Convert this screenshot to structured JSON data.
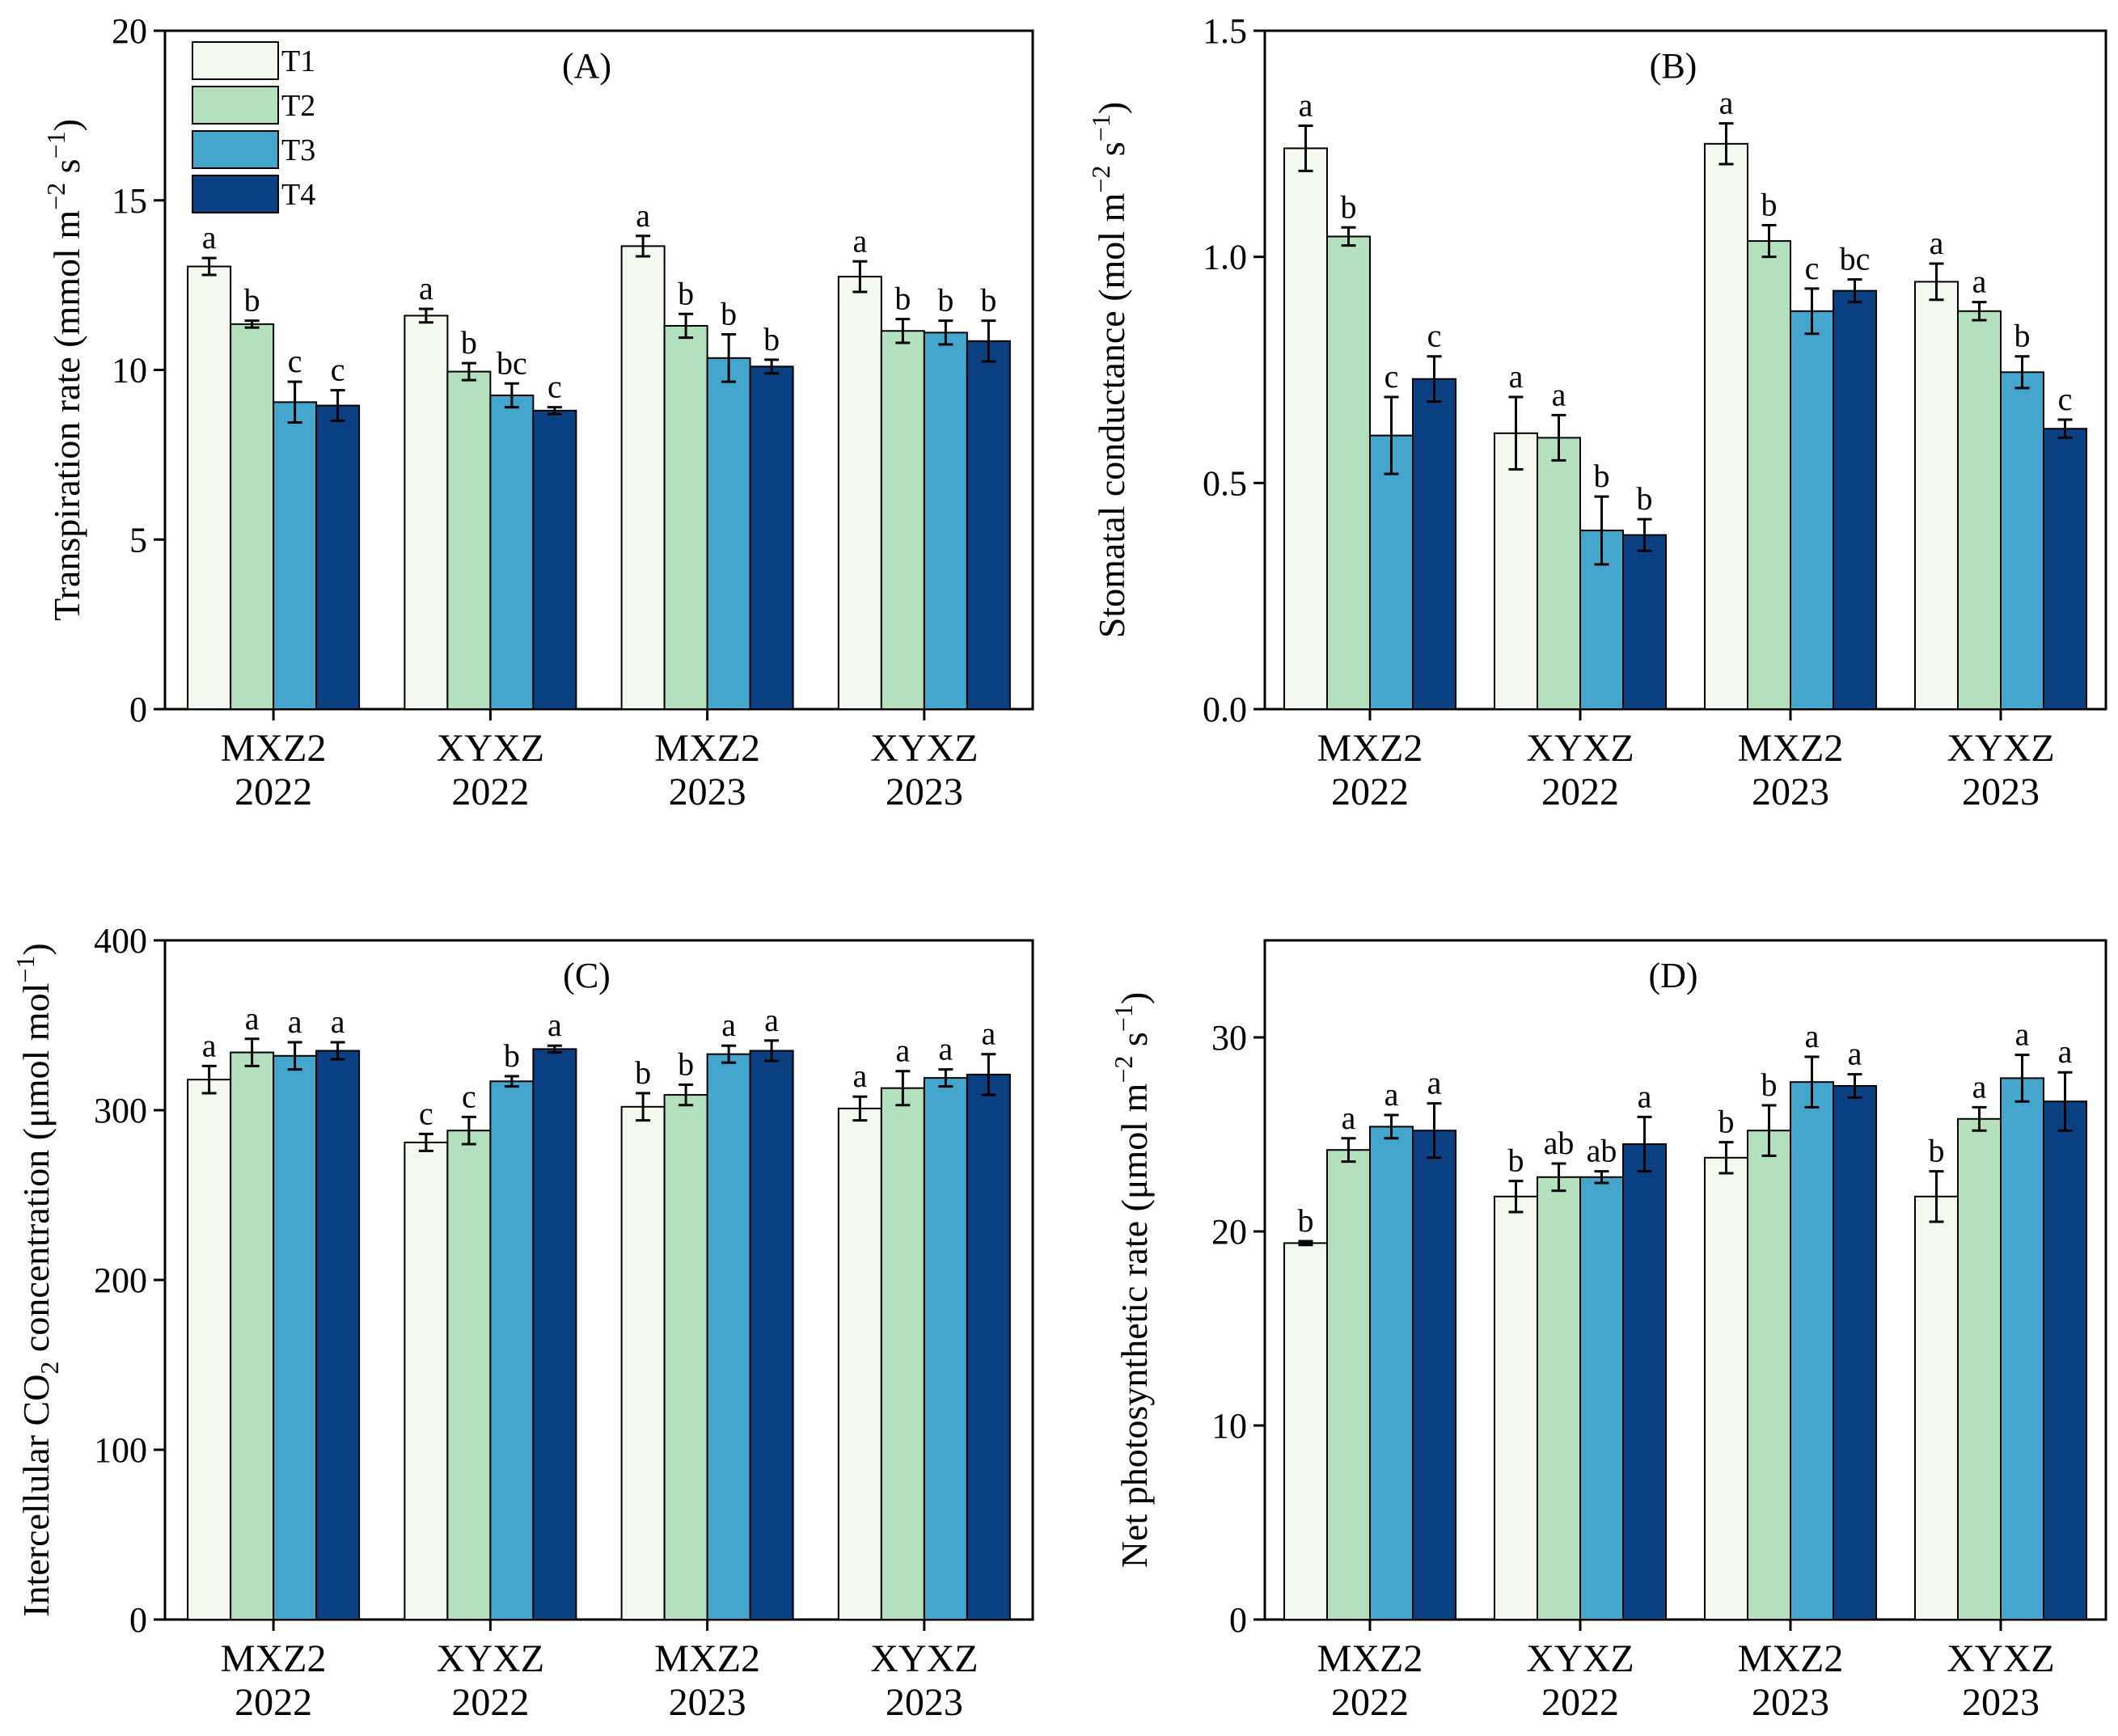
{
  "figure": {
    "background": "#ffffff"
  },
  "legend": {
    "items": [
      {
        "name": "T1",
        "color": "#f4f9ef"
      },
      {
        "name": "T2",
        "color": "#b3e0bd"
      },
      {
        "name": "T3",
        "color": "#44a6cc"
      },
      {
        "name": "T4",
        "color": "#0b4182"
      }
    ]
  },
  "chart_data": [
    {
      "type": "bar",
      "panel_label": "(A)",
      "ylabel": "Transpiration rate (mmol m",
      "ylabel_sup1": "−2",
      "ylabel_mid": " s",
      "ylabel_sup2": "−1",
      "ylabel_end": ")",
      "ylim": [
        0,
        20
      ],
      "yticks": [
        "0",
        "5",
        "10",
        "15",
        "20"
      ],
      "categories": [
        [
          "MXZ2",
          "2022"
        ],
        [
          "XYXZ",
          "2022"
        ],
        [
          "MXZ2",
          "2023"
        ],
        [
          "XYXZ",
          "2023"
        ]
      ],
      "series": [
        {
          "name": "T1",
          "values": [
            13.05,
            11.6,
            13.65,
            12.75
          ],
          "errors": [
            0.25,
            0.2,
            0.3,
            0.45
          ],
          "letters": [
            "a",
            "a",
            "a",
            "a"
          ]
        },
        {
          "name": "T2",
          "values": [
            11.35,
            9.95,
            11.3,
            11.15
          ],
          "errors": [
            0.1,
            0.25,
            0.35,
            0.35
          ],
          "letters": [
            "b",
            "b",
            "b",
            "b"
          ]
        },
        {
          "name": "T3",
          "values": [
            9.05,
            9.25,
            10.35,
            11.1
          ],
          "errors": [
            0.6,
            0.35,
            0.7,
            0.35
          ],
          "letters": [
            "c",
            "bc",
            "b",
            "b"
          ]
        },
        {
          "name": "T4",
          "values": [
            8.95,
            8.8,
            10.1,
            10.85
          ],
          "errors": [
            0.45,
            0.1,
            0.2,
            0.6
          ],
          "letters": [
            "c",
            "c",
            "b",
            "b"
          ]
        }
      ]
    },
    {
      "type": "bar",
      "panel_label": "(B)",
      "ylabel": "Stomatal conductance (mol m",
      "ylabel_sup1": "−2",
      "ylabel_mid": " s",
      "ylabel_sup2": "−1",
      "ylabel_end": ")",
      "ylim": [
        0,
        1.5
      ],
      "yticks": [
        "0.0",
        "0.5",
        "1.0",
        "1.5"
      ],
      "categories": [
        [
          "MXZ2",
          "2022"
        ],
        [
          "XYXZ",
          "2022"
        ],
        [
          "MXZ2",
          "2023"
        ],
        [
          "XYXZ",
          "2023"
        ]
      ],
      "series": [
        {
          "name": "T1",
          "values": [
            1.24,
            0.61,
            1.25,
            0.945
          ],
          "errors": [
            0.05,
            0.08,
            0.045,
            0.04
          ],
          "letters": [
            "a",
            "a",
            "a",
            "a"
          ]
        },
        {
          "name": "T2",
          "values": [
            1.045,
            0.6,
            1.035,
            0.88
          ],
          "errors": [
            0.02,
            0.05,
            0.035,
            0.02
          ],
          "letters": [
            "b",
            "a",
            "b",
            "a"
          ]
        },
        {
          "name": "T3",
          "values": [
            0.605,
            0.395,
            0.88,
            0.745
          ],
          "errors": [
            0.085,
            0.075,
            0.05,
            0.035
          ],
          "letters": [
            "c",
            "b",
            "c",
            "b"
          ]
        },
        {
          "name": "T4",
          "values": [
            0.73,
            0.385,
            0.925,
            0.62
          ],
          "errors": [
            0.05,
            0.035,
            0.025,
            0.02
          ],
          "letters": [
            "c",
            "b",
            "bc",
            "c"
          ]
        }
      ]
    },
    {
      "type": "bar",
      "panel_label": "(C)",
      "ylabel": "Intercellular CO",
      "ylabel_sub": "2",
      "ylabel_rest": " concentration (μmol mol",
      "ylabel_sup": "−1",
      "ylabel_end": ")",
      "ylim": [
        0,
        400
      ],
      "yticks": [
        "0",
        "100",
        "200",
        "300",
        "400"
      ],
      "categories": [
        [
          "MXZ2",
          "2022"
        ],
        [
          "XYXZ",
          "2022"
        ],
        [
          "MXZ2",
          "2023"
        ],
        [
          "XYXZ",
          "2023"
        ]
      ],
      "series": [
        {
          "name": "T1",
          "values": [
            318,
            281,
            302,
            301
          ],
          "errors": [
            8,
            5,
            8,
            7
          ],
          "letters": [
            "a",
            "c",
            "b",
            "a"
          ]
        },
        {
          "name": "T2",
          "values": [
            334,
            288,
            309,
            313
          ],
          "errors": [
            8,
            8,
            6,
            10
          ],
          "letters": [
            "a",
            "c",
            "b",
            "a"
          ]
        },
        {
          "name": "T3",
          "values": [
            332,
            317,
            333,
            319
          ],
          "errors": [
            8,
            3,
            5,
            5
          ],
          "letters": [
            "a",
            "b",
            "a",
            "a"
          ]
        },
        {
          "name": "T4",
          "values": [
            335,
            336,
            335,
            321
          ],
          "errors": [
            5,
            2,
            6,
            12
          ],
          "letters": [
            "a",
            "a",
            "a",
            "a"
          ]
        }
      ]
    },
    {
      "type": "bar",
      "panel_label": "(D)",
      "ylabel": "Net photosynthetic rate (μmol m",
      "ylabel_sup1": "−2",
      "ylabel_mid": " s",
      "ylabel_sup2": "−1",
      "ylabel_end": ")",
      "ylim": [
        0,
        35
      ],
      "yticks": [
        "0",
        "10",
        "20",
        "30"
      ],
      "tick_values": [
        0,
        10,
        20,
        30
      ],
      "categories": [
        [
          "MXZ2",
          "2022"
        ],
        [
          "XYXZ",
          "2022"
        ],
        [
          "MXZ2",
          "2023"
        ],
        [
          "XYXZ",
          "2023"
        ]
      ],
      "series": [
        {
          "name": "T1",
          "values": [
            19.4,
            21.8,
            23.8,
            21.8
          ],
          "errors": [
            0.1,
            0.8,
            0.8,
            1.3
          ],
          "letters": [
            "b",
            "b",
            "b",
            "b"
          ]
        },
        {
          "name": "T2",
          "values": [
            24.2,
            22.8,
            25.2,
            25.8
          ],
          "errors": [
            0.6,
            0.7,
            1.3,
            0.6
          ],
          "letters": [
            "a",
            "ab",
            "b",
            "a"
          ]
        },
        {
          "name": "T3",
          "values": [
            25.4,
            22.8,
            27.7,
            27.9
          ],
          "errors": [
            0.6,
            0.3,
            1.3,
            1.2
          ],
          "letters": [
            "a",
            "ab",
            "a",
            "a"
          ]
        },
        {
          "name": "T4",
          "values": [
            25.2,
            24.5,
            27.5,
            26.7
          ],
          "errors": [
            1.4,
            1.4,
            0.6,
            1.5
          ],
          "letters": [
            "a",
            "a",
            "a",
            "a"
          ]
        }
      ]
    }
  ]
}
